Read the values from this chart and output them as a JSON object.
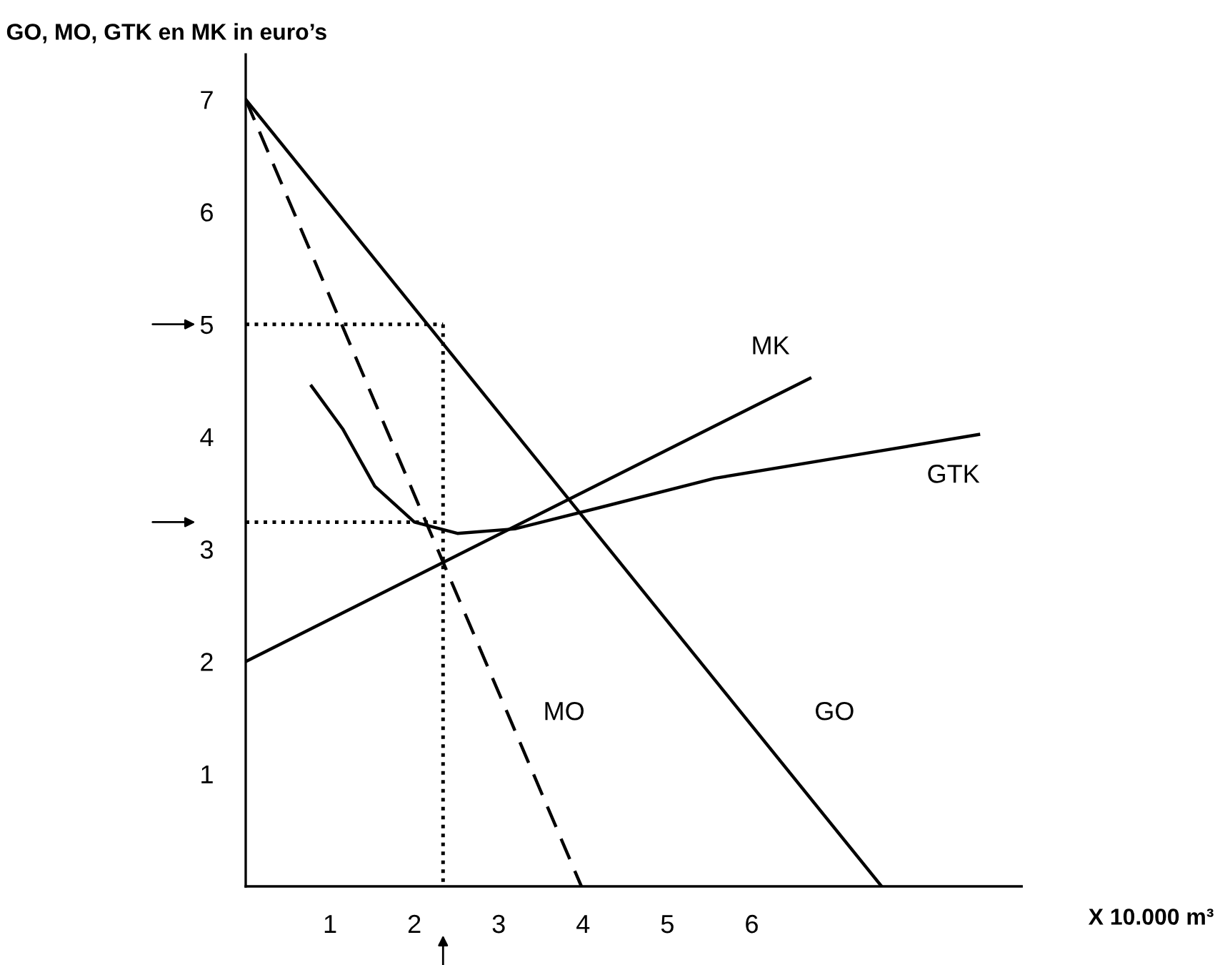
{
  "chart_data": {
    "type": "line",
    "ylabel": "GO, MO, GTK en MK in euro’s",
    "xlabel": "X 10.000 m³",
    "xlim": [
      0,
      9.2
    ],
    "ylim": [
      0,
      7.4
    ],
    "xticks": [
      1,
      2,
      3,
      4,
      5,
      6
    ],
    "yticks": [
      1,
      2,
      3,
      4,
      5,
      6,
      7
    ],
    "grid": false,
    "series": [
      {
        "name": "GO",
        "color": "#000000",
        "line_style": "solid",
        "x": [
          0,
          7.54
        ],
        "values": [
          7,
          0
        ]
      },
      {
        "name": "MO",
        "color": "#000000",
        "line_style": "dashed",
        "x": [
          0,
          3.98
        ],
        "values": [
          7,
          0
        ]
      },
      {
        "name": "MK",
        "color": "#000000",
        "line_style": "solid",
        "x": [
          0,
          6.69
        ],
        "values": [
          2,
          4.52
        ]
      },
      {
        "name": "GTK",
        "color": "#000000",
        "line_style": "solid",
        "x": [
          0.78,
          1.15,
          1.53,
          2.0,
          2.51,
          3.19,
          4.2,
          5.56,
          7.25,
          8.69
        ],
        "values": [
          4.45,
          4.07,
          3.56,
          3.24,
          3.14,
          3.18,
          3.37,
          3.63,
          3.84,
          4.02
        ]
      },
      {
        "color": "#000000",
        "line_style": "dotted",
        "x": [
          0,
          2.34
        ],
        "values": [
          5,
          5
        ]
      },
      {
        "color": "#000000",
        "line_style": "dotted",
        "x": [
          0,
          2.34
        ],
        "values": [
          3.24,
          3.24
        ]
      },
      {
        "color": "#000000",
        "line_style": "dotted",
        "x": [
          2.34,
          2.34
        ],
        "values": [
          5,
          0
        ]
      }
    ]
  }
}
